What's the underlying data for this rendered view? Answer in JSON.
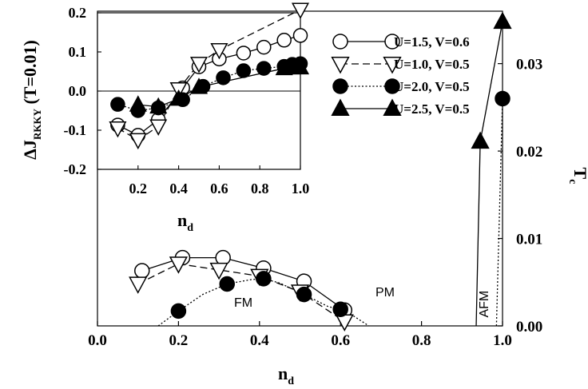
{
  "chart_data": [
    {
      "type": "line",
      "role": "main",
      "xlabel": "n",
      "xlabel_sub": "d",
      "ylabel_right": "T",
      "ylabel_right_sub": "c",
      "xlim": [
        0.0,
        1.0
      ],
      "ylim": [
        0.0,
        0.036
      ],
      "x_ticks": [
        {
          "value": 0.0,
          "label": "0.0"
        },
        {
          "value": 0.2,
          "label": "0.2"
        },
        {
          "value": 0.4,
          "label": "0.4"
        },
        {
          "value": 0.6,
          "label": "0.6"
        },
        {
          "value": 0.8,
          "label": "0.8"
        },
        {
          "value": 1.0,
          "label": "1.0"
        }
      ],
      "y_ticks_right": [
        {
          "value": 0.0,
          "label": "0.00"
        },
        {
          "value": 0.01,
          "label": "0.01"
        },
        {
          "value": 0.02,
          "label": "0.02"
        },
        {
          "value": 0.03,
          "label": "0.03"
        }
      ],
      "grid": false,
      "series": [
        {
          "name": "U=1.5, V=0.6",
          "marker": "circle-open",
          "line": "solid",
          "x": [
            0.11,
            0.21,
            0.31,
            0.41,
            0.51,
            0.61
          ],
          "y": [
            0.0063,
            0.0078,
            0.0078,
            0.0066,
            0.0051,
            0.0018
          ]
        },
        {
          "name": "U=1.0, V=0.5",
          "marker": "triangle-down-open",
          "line": "dashed",
          "x": [
            0.1,
            0.2,
            0.3,
            0.4,
            0.5,
            0.61
          ],
          "y": [
            0.0048,
            0.0071,
            0.0064,
            0.0057,
            0.0039,
            0.0005
          ]
        },
        {
          "name": "U=2.0, V=0.5",
          "marker": "circle-filled",
          "line": "dotted",
          "x": [
            0.2,
            0.32,
            0.41,
            0.51,
            0.6
          ],
          "y": [
            0.0017,
            0.0048,
            0.0054,
            0.0036,
            0.0019
          ],
          "curve_x": [
            0.15,
            0.2,
            0.26,
            0.32,
            0.38,
            0.41,
            0.45,
            0.51,
            0.57,
            0.6,
            0.63,
            0.67
          ],
          "curve_y": [
            0.0,
            0.0017,
            0.0036,
            0.0048,
            0.0053,
            0.0054,
            0.0049,
            0.0036,
            0.0022,
            0.0019,
            0.0012,
            0.0
          ]
        },
        {
          "name": "U=2.5, V=0.5",
          "marker": "triangle-up-filled",
          "line": "solid",
          "x": [
            0.945,
            1.0
          ],
          "y": [
            0.0211,
            0.0348
          ],
          "curve_x": [
            0.935,
            0.945,
            1.0
          ],
          "curve_y": [
            0.0,
            0.0211,
            0.0348
          ]
        }
      ],
      "extra_points": [
        {
          "marker": "circle-filled",
          "x": 1.0,
          "y": 0.026
        }
      ],
      "extra_lines": [
        {
          "line": "dotted",
          "x": [
            0.985,
            1.0
          ],
          "y": [
            0.0,
            0.026
          ]
        }
      ],
      "annotations": [
        {
          "text": "FM",
          "x": 0.36,
          "y": 0.0022
        },
        {
          "text": "PM",
          "x": 0.71,
          "y": 0.0034
        },
        {
          "text": "AFM",
          "x": 0.965,
          "y": 0.0025,
          "rotated": true
        }
      ]
    },
    {
      "type": "line",
      "role": "inset",
      "xlabel": "n",
      "xlabel_sub": "d",
      "ylabel": "ΔJ",
      "ylabel_sub": "RKKY",
      "ylabel_suffix": " (T=0.01)",
      "xlim": [
        0.0,
        1.0
      ],
      "ylim": [
        -0.2,
        0.2
      ],
      "x_ticks": [
        {
          "value": 0.2,
          "label": "0.2"
        },
        {
          "value": 0.4,
          "label": "0.4"
        },
        {
          "value": 0.6,
          "label": "0.6"
        },
        {
          "value": 0.8,
          "label": "0.8"
        },
        {
          "value": 1.0,
          "label": "1.0"
        }
      ],
      "y_ticks": [
        {
          "value": -0.2,
          "label": "-0.2"
        },
        {
          "value": -0.1,
          "label": "-0.1"
        },
        {
          "value": 0.0,
          "label": "0.0"
        },
        {
          "value": 0.1,
          "label": "0.1"
        },
        {
          "value": 0.2,
          "label": "0.2"
        }
      ],
      "zero_line": true,
      "series": [
        {
          "name": "U=1.5, V=0.6",
          "marker": "circle-open",
          "line": "solid",
          "x": [
            0.1,
            0.2,
            0.3,
            0.42,
            0.5,
            0.6,
            0.72,
            0.82,
            0.92,
            1.0
          ],
          "y": [
            -0.087,
            -0.113,
            -0.073,
            0.008,
            0.062,
            0.082,
            0.097,
            0.112,
            0.13,
            0.142
          ]
        },
        {
          "name": "U=1.0, V=0.5",
          "marker": "triangle-down-open",
          "line": "dashed",
          "x": [
            0.1,
            0.2,
            0.3,
            0.4,
            0.5,
            0.6,
            1.0
          ],
          "y": [
            -0.095,
            -0.125,
            -0.09,
            0.005,
            0.07,
            0.105,
            0.208
          ]
        },
        {
          "name": "U=2.0, V=0.5",
          "marker": "circle-filled",
          "line": "dotted",
          "x": [
            0.1,
            0.2,
            0.3,
            0.42,
            0.52,
            0.62,
            0.72,
            0.82,
            0.92,
            0.96,
            1.0
          ],
          "y": [
            -0.034,
            -0.05,
            -0.043,
            -0.022,
            0.012,
            0.034,
            0.052,
            0.058,
            0.063,
            0.068,
            0.07
          ]
        },
        {
          "name": "U=2.5, V=0.5",
          "marker": "triangle-up-filled",
          "line": "solid",
          "x": [
            0.2,
            0.3,
            0.4,
            0.5,
            0.92,
            0.96,
            1.0
          ],
          "y": [
            -0.035,
            -0.04,
            -0.02,
            0.01,
            0.058,
            0.06,
            0.06
          ]
        }
      ]
    }
  ],
  "legend": {
    "items": [
      {
        "label": "U=1.5, V=0.6",
        "marker": "circle-open",
        "line": "solid"
      },
      {
        "label": "U=1.0, V=0.5",
        "marker": "triangle-down-open",
        "line": "dashed"
      },
      {
        "label": "U=2.0, V=0.5",
        "marker": "circle-filled",
        "line": "dotted"
      },
      {
        "label": "U=2.5, V=0.5",
        "marker": "triangle-up-filled",
        "line": "solid"
      }
    ]
  }
}
